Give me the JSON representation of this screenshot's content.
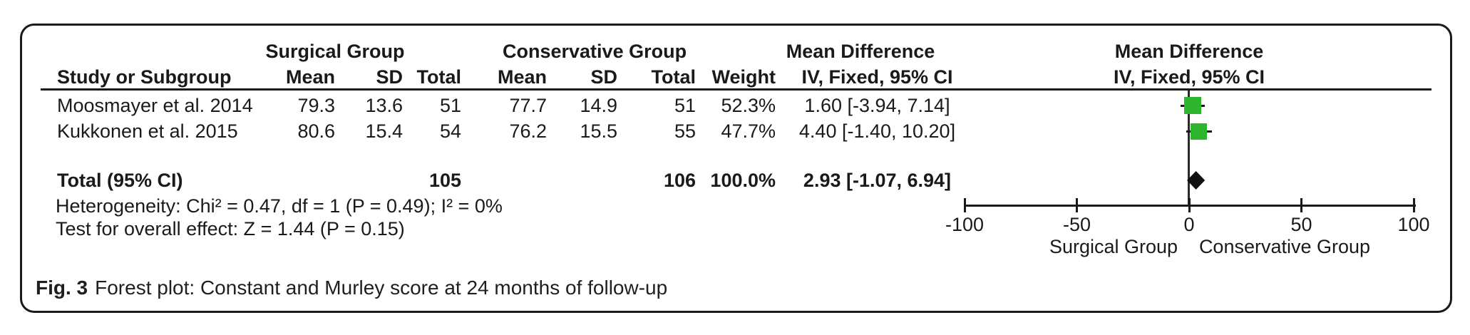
{
  "caption": {
    "label": "Fig. 3",
    "text": "Forest plot: Constant and Murley score at 24 months of follow-up"
  },
  "colors": {
    "marker_green": "#2db52d",
    "diamond_black": "#111111",
    "line_black": "#1a1a1a"
  },
  "table": {
    "group_headers": {
      "surgical": "Surgical Group",
      "conservative": "Conservative Group",
      "mean_difference": "Mean Difference"
    },
    "plot_headers": {
      "line1": "Mean Difference",
      "line2": "IV, Fixed, 95% CI"
    },
    "columns": {
      "study": "Study or Subgroup",
      "mean": "Mean",
      "sd": "SD",
      "total": "Total",
      "weight": "Weight",
      "ci": "IV, Fixed, 95% CI"
    },
    "rows": [
      {
        "study": "Moosmayer et al. 2014",
        "s_mean": "79.3",
        "s_sd": "13.6",
        "s_total": "51",
        "c_mean": "77.7",
        "c_sd": "14.9",
        "c_total": "51",
        "weight": "52.3%",
        "ci": "1.60 [-3.94, 7.14]"
      },
      {
        "study": "Kukkonen et al. 2015",
        "s_mean": "80.6",
        "s_sd": "15.4",
        "s_total": "54",
        "c_mean": "76.2",
        "c_sd": "15.5",
        "c_total": "55",
        "weight": "47.7%",
        "ci": "4.40 [-1.40, 10.20]"
      }
    ],
    "total_row": {
      "label": "Total (95% CI)",
      "s_total": "105",
      "c_total": "106",
      "weight": "100.0%",
      "ci": "2.93 [-1.07, 6.94]"
    },
    "heterogeneity": "Heterogeneity: Chi² = 0.47, df = 1 (P = 0.49); I² = 0%",
    "overall_effect": "Test for overall effect: Z = 1.44 (P = 0.15)"
  },
  "chart_data": {
    "type": "scatter",
    "subtype": "forest_plot",
    "effect_measure": "Mean Difference, IV, Fixed, 95% CI",
    "studies": [
      {
        "name": "Moosmayer et al. 2014",
        "md": 1.6,
        "ci": [
          -3.94,
          7.14
        ],
        "weight": 52.3
      },
      {
        "name": "Kukkonen et al. 2015",
        "md": 4.4,
        "ci": [
          -1.4,
          10.2
        ],
        "weight": 47.7
      }
    ],
    "pooled": {
      "name": "Total (95% CI)",
      "md": 2.93,
      "ci": [
        -1.07,
        6.94
      ],
      "weight": 100.0
    },
    "x_axis": {
      "min": -100,
      "max": 100,
      "ticks": [
        -100,
        -50,
        0,
        50,
        100
      ],
      "left_label": "Surgical Group",
      "right_label": "Conservative Group"
    },
    "heterogeneity": {
      "chi2": 0.47,
      "df": 1,
      "p": 0.49,
      "i2": "0%"
    },
    "overall_effect": {
      "z": 1.44,
      "p": 0.15
    },
    "legend_position": "none",
    "grid": false
  }
}
